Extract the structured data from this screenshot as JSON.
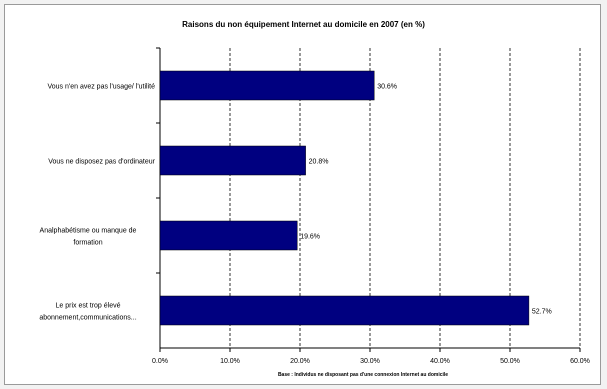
{
  "chart_data": {
    "type": "bar",
    "orientation": "horizontal",
    "title": "Raisons du non équipement Internet au domicile en 2007 (en %)",
    "categories": [
      [
        "Vous n'en avez pas l'usage/ l'utilité"
      ],
      [
        "Vous ne disposez pas d'ordinateur"
      ],
      [
        "Analphabétisme ou manque de",
        "formation"
      ],
      [
        "Le prix est trop élevé",
        "abonnement,communications..."
      ]
    ],
    "values": [
      30.6,
      20.8,
      19.6,
      52.7
    ],
    "data_labels": [
      "30.6%",
      "20.8%",
      "19.6%",
      "52.7%"
    ],
    "xlim": [
      0,
      60
    ],
    "x_ticks": [
      "0.0%",
      "10.0%",
      "20.0%",
      "30.0%",
      "40.0%",
      "50.0%",
      "60.0%"
    ],
    "bar_color": "#000080",
    "grid": "vertical dashed",
    "note": "Base : Individus ne disposant pas d'une connexion Internet au domicile"
  }
}
